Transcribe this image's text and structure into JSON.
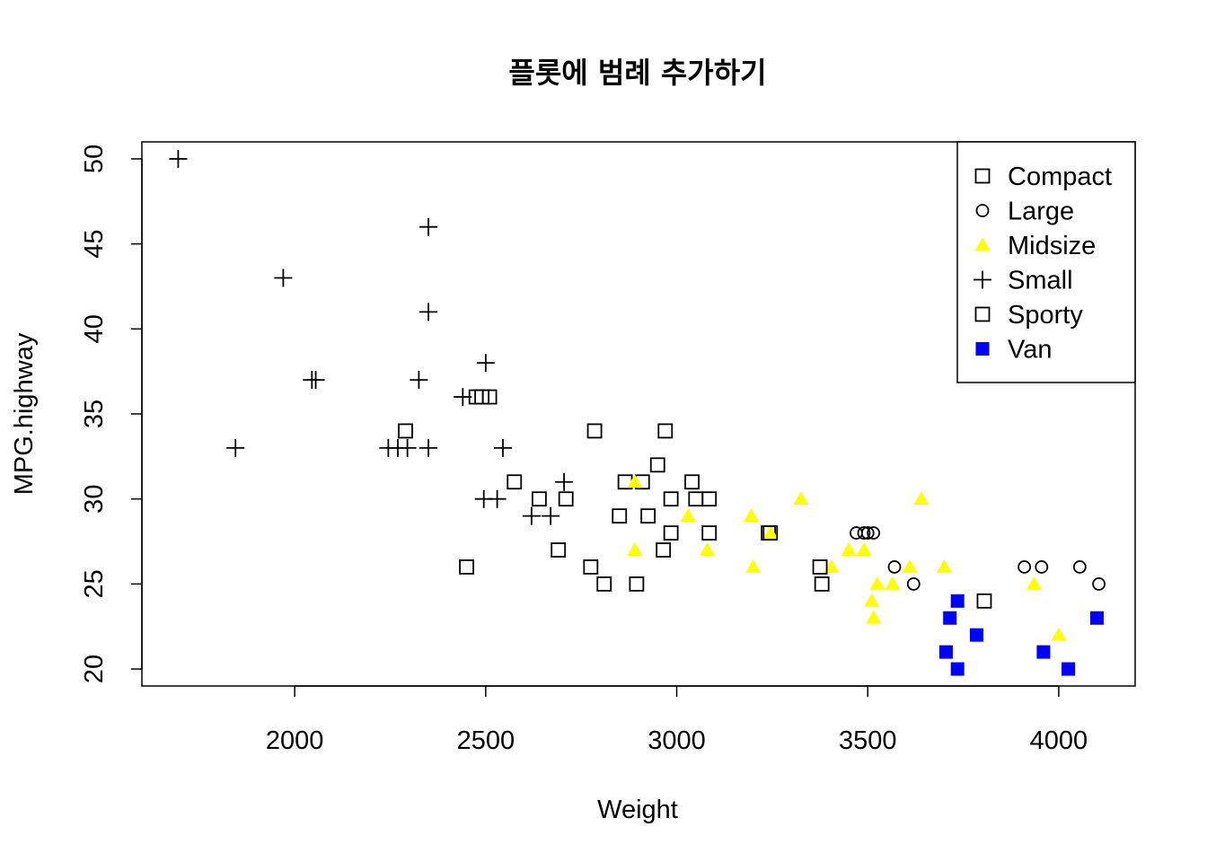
{
  "chart_data": {
    "type": "scatter",
    "title": "플롯에 범례 추가하기",
    "xlabel": "Weight",
    "ylabel": "MPG.highway",
    "xlim": [
      1600,
      4200
    ],
    "ylim": [
      19,
      51
    ],
    "x_ticks": [
      "2000",
      "2500",
      "3000",
      "3500",
      "4000"
    ],
    "y_ticks": [
      "20",
      "25",
      "30",
      "35",
      "40",
      "45",
      "50"
    ],
    "grid": false,
    "legend_position": "top-right",
    "series": [
      {
        "name": "Compact",
        "marker": "open-square",
        "color": "#000000",
        "points": [
          [
            2290,
            34
          ],
          [
            2475,
            36
          ],
          [
            2490,
            36
          ],
          [
            2510,
            36
          ],
          [
            2575,
            31
          ],
          [
            2640,
            30
          ],
          [
            2710,
            30
          ],
          [
            2850,
            29
          ],
          [
            2865,
            31
          ],
          [
            2910,
            31
          ],
          [
            2925,
            29
          ],
          [
            2950,
            32
          ],
          [
            2965,
            27
          ],
          [
            2970,
            34
          ],
          [
            2985,
            30
          ],
          [
            3040,
            31
          ],
          [
            3050,
            30
          ],
          [
            3085,
            28
          ],
          [
            3240,
            28
          ],
          [
            3380,
            25
          ]
        ]
      },
      {
        "name": "Large",
        "marker": "open-circle",
        "color": "#000000",
        "points": [
          [
            3470,
            28
          ],
          [
            3490,
            28
          ],
          [
            3500,
            28
          ],
          [
            3515,
            28
          ],
          [
            3570,
            26
          ],
          [
            3620,
            25
          ],
          [
            3910,
            26
          ],
          [
            3955,
            26
          ],
          [
            4055,
            26
          ],
          [
            4105,
            25
          ]
        ]
      },
      {
        "name": "Midsize",
        "marker": "filled-triangle",
        "color": "#ffff00",
        "points": [
          [
            2890,
            31
          ],
          [
            2890,
            27
          ],
          [
            3030,
            29
          ],
          [
            3080,
            27
          ],
          [
            3195,
            29
          ],
          [
            3200,
            26
          ],
          [
            3245,
            28
          ],
          [
            3325,
            30
          ],
          [
            3405,
            26
          ],
          [
            3450,
            27
          ],
          [
            3490,
            27
          ],
          [
            3510,
            24
          ],
          [
            3515,
            23
          ],
          [
            3525,
            25
          ],
          [
            3565,
            25
          ],
          [
            3610,
            26
          ],
          [
            3640,
            30
          ],
          [
            3700,
            26
          ],
          [
            3735,
            24
          ],
          [
            3935,
            25
          ],
          [
            4000,
            22
          ]
        ]
      },
      {
        "name": "Small",
        "marker": "plus",
        "color": "#000000",
        "points": [
          [
            1695,
            50
          ],
          [
            1845,
            33
          ],
          [
            1970,
            43
          ],
          [
            2045,
            37
          ],
          [
            2055,
            37
          ],
          [
            2245,
            33
          ],
          [
            2270,
            33
          ],
          [
            2295,
            33
          ],
          [
            2325,
            37
          ],
          [
            2350,
            46
          ],
          [
            2350,
            41
          ],
          [
            2350,
            33
          ],
          [
            2440,
            36
          ],
          [
            2495,
            30
          ],
          [
            2500,
            38
          ],
          [
            2530,
            30
          ],
          [
            2545,
            33
          ],
          [
            2620,
            29
          ],
          [
            2670,
            29
          ],
          [
            2705,
            31
          ]
        ]
      },
      {
        "name": "Sporty",
        "marker": "open-square",
        "color": "#000000",
        "points": [
          [
            2450,
            26
          ],
          [
            2690,
            27
          ],
          [
            2775,
            26
          ],
          [
            2785,
            34
          ],
          [
            2810,
            25
          ],
          [
            2895,
            25
          ],
          [
            2985,
            28
          ],
          [
            3085,
            30
          ],
          [
            3245,
            28
          ],
          [
            3375,
            26
          ],
          [
            3805,
            24
          ]
        ]
      },
      {
        "name": "Van",
        "marker": "filled-square",
        "color": "#0000ff",
        "points": [
          [
            3705,
            21
          ],
          [
            3715,
            23
          ],
          [
            3735,
            24
          ],
          [
            3735,
            20
          ],
          [
            3785,
            22
          ],
          [
            3960,
            21
          ],
          [
            4025,
            20
          ],
          [
            4100,
            23
          ]
        ]
      }
    ]
  }
}
